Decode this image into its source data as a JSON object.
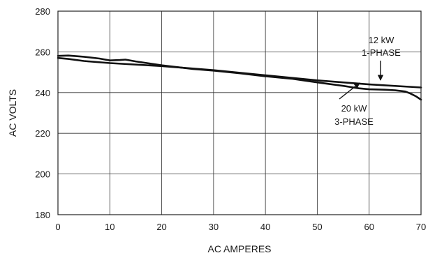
{
  "chart_data": {
    "type": "line",
    "title": "",
    "xlabel": "AC AMPERES",
    "ylabel": "AC VOLTS",
    "xlim": [
      0,
      70
    ],
    "ylim": [
      180,
      280
    ],
    "x_ticks": [
      "0",
      "10",
      "20",
      "30",
      "40",
      "50",
      "60",
      "70"
    ],
    "y_ticks": [
      "180",
      "200",
      "220",
      "240",
      "260",
      "280"
    ],
    "grid": true,
    "series": [
      {
        "name": "12 kW 1-PHASE",
        "x": [
          0,
          2,
          5,
          10,
          20,
          30,
          40,
          50,
          60,
          70
        ],
        "y": [
          257,
          256.5,
          255.5,
          254.5,
          253,
          251,
          248.5,
          246,
          244,
          242.5
        ]
      },
      {
        "name": "20 kW 3-PHASE",
        "x": [
          0,
          2,
          5,
          8,
          10,
          12,
          13,
          15,
          20,
          26,
          30,
          35,
          40,
          45,
          50,
          55,
          58,
          60,
          63,
          65,
          67,
          68,
          69,
          70
        ],
        "y": [
          258,
          258.2,
          257.6,
          256.7,
          255.8,
          256,
          256.2,
          255.3,
          253.4,
          251.6,
          250.8,
          249.5,
          248,
          246.8,
          245,
          243.3,
          242.1,
          241.6,
          241.4,
          241.1,
          240.5,
          239.5,
          238.2,
          236.5
        ]
      }
    ],
    "annotations": [
      {
        "lines": [
          "12 kW",
          "1-PHASE"
        ],
        "series": "12 kW 1-PHASE"
      },
      {
        "lines": [
          "20 kW",
          "3-PHASE"
        ],
        "series": "20 kW 3-PHASE"
      }
    ]
  }
}
